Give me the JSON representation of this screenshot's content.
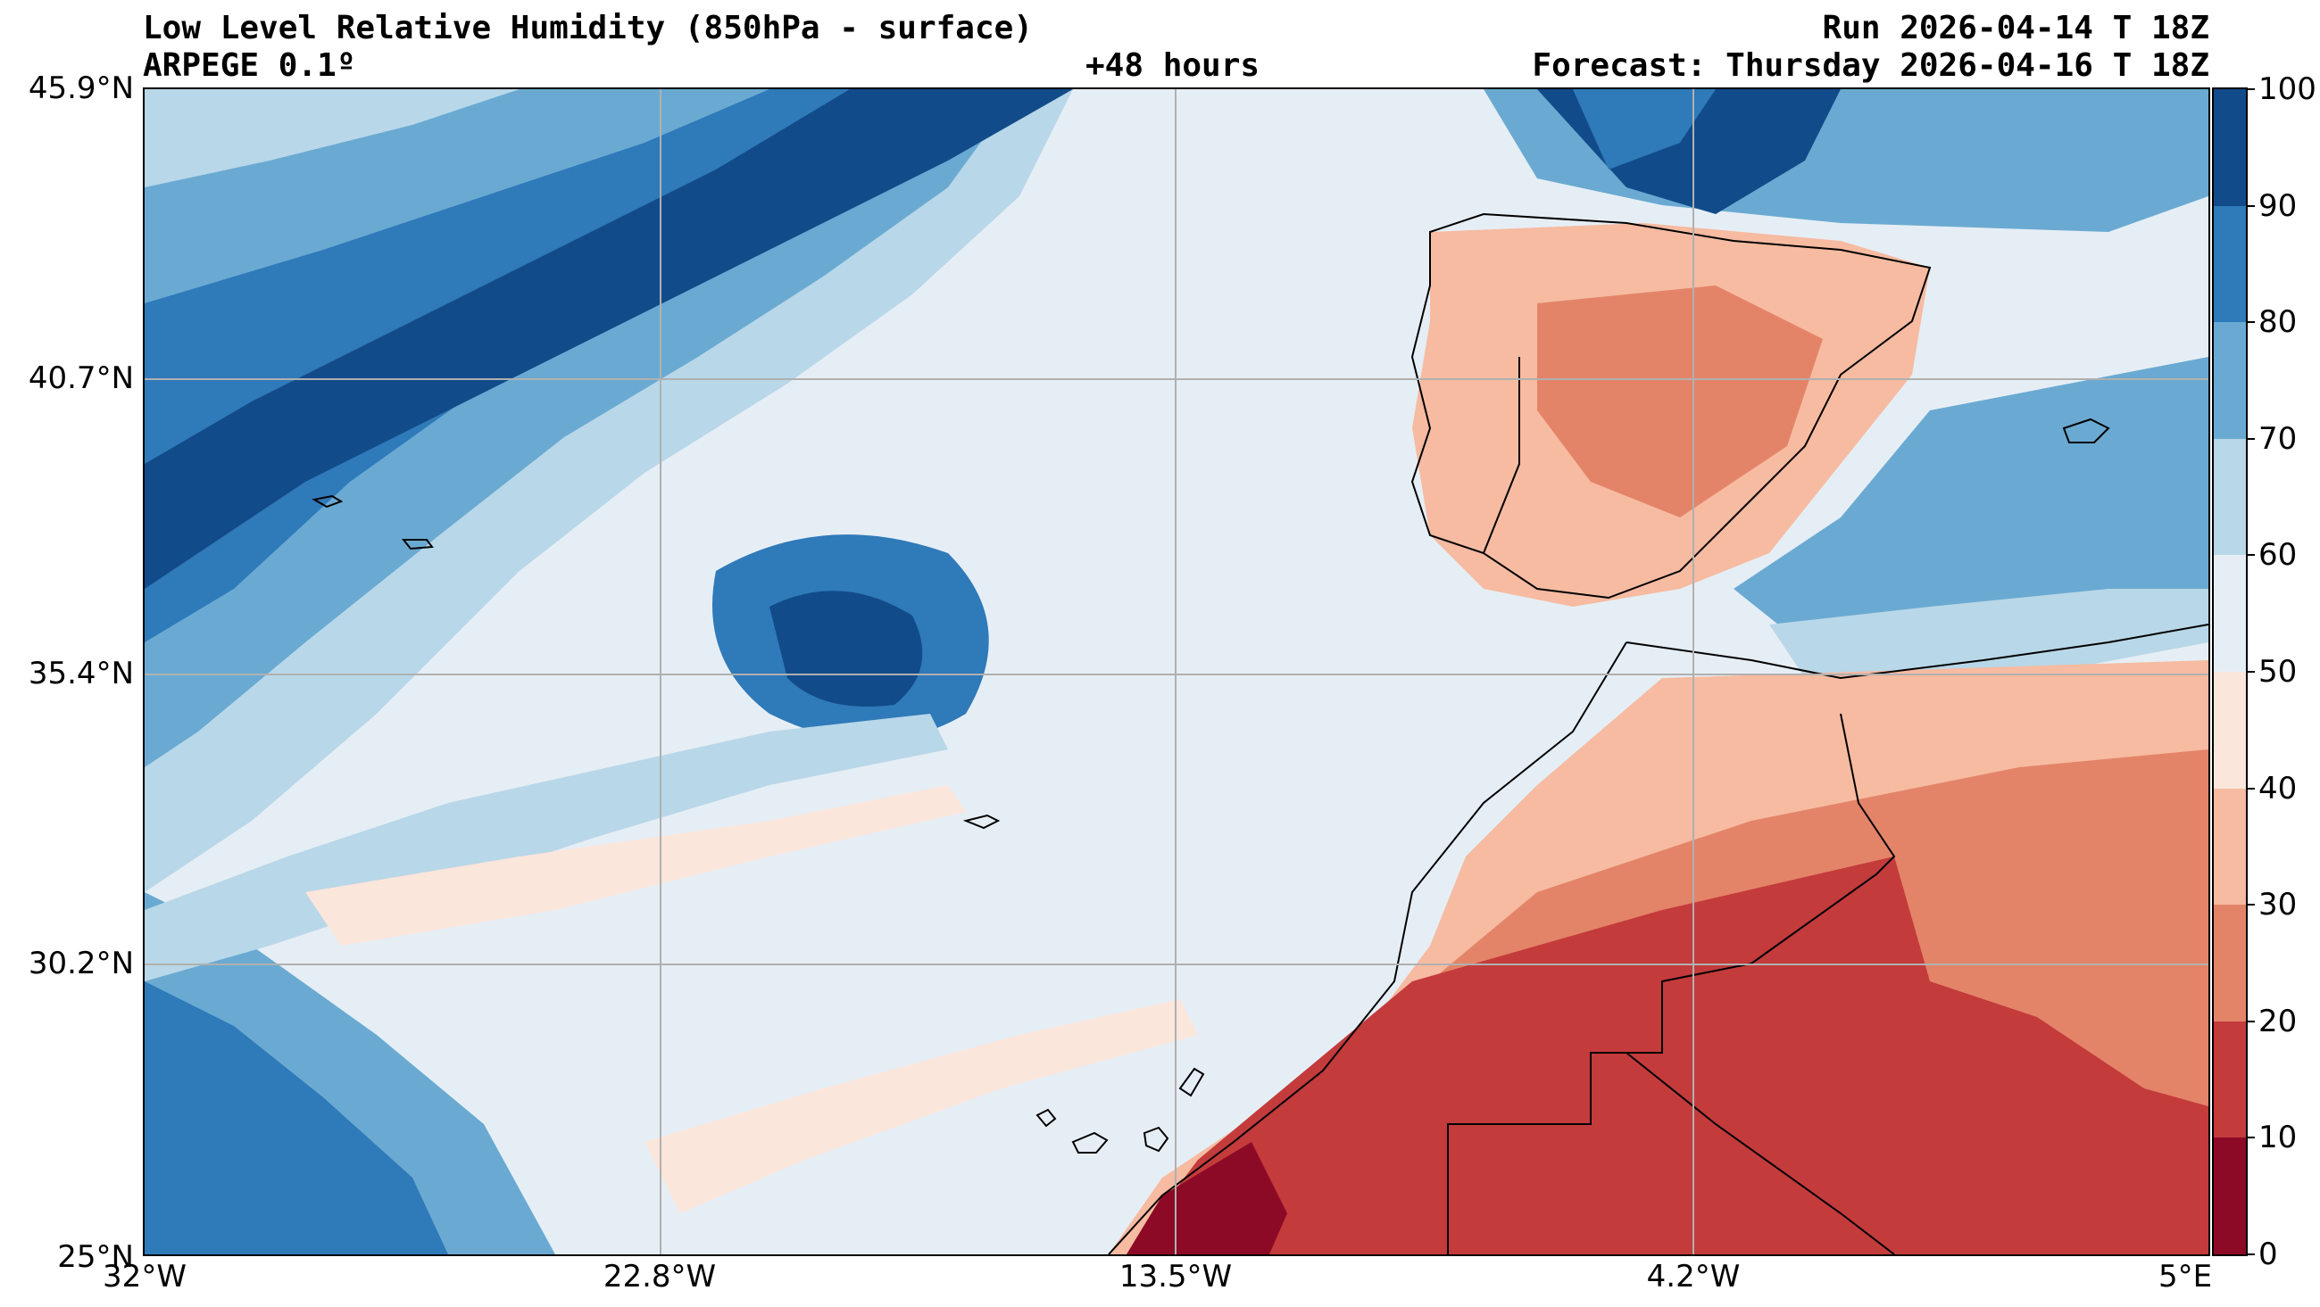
{
  "header": {
    "title": "Low Level Relative Humidity (850hPa - surface)",
    "model": "ARPEGE 0.1º",
    "lead_time": "+48 hours",
    "run": "Run 2026-04-14 T 18Z",
    "forecast": "Forecast: Thursday 2026-04-16 T 18Z"
  },
  "axes": {
    "latitude_labels": [
      "45.9°N",
      "40.7°N",
      "35.4°N",
      "30.2°N",
      "25°N"
    ],
    "longitude_labels": [
      "32°W",
      "22.8°W",
      "13.5°W",
      "4.2°W",
      "5°E"
    ],
    "lat_values": [
      45.9,
      40.7,
      35.4,
      30.2,
      25
    ],
    "lon_values": [
      -32,
      -22.8,
      -13.5,
      -4.2,
      5
    ],
    "lat_range": [
      25,
      45.9
    ],
    "lon_range": [
      -32,
      5
    ],
    "grid": true
  },
  "colorbar": {
    "ticks": [
      "0",
      "10",
      "20",
      "30",
      "40",
      "50",
      "60",
      "70",
      "80",
      "90",
      "100"
    ],
    "levels": [
      {
        "min": 0,
        "max": 10,
        "color": "#8c0a25"
      },
      {
        "min": 10,
        "max": 20,
        "color": "#c43b3c"
      },
      {
        "min": 20,
        "max": 30,
        "color": "#e38468"
      },
      {
        "min": 30,
        "max": 40,
        "color": "#f6bba1"
      },
      {
        "min": 40,
        "max": 50,
        "color": "#fbe6dc"
      },
      {
        "min": 50,
        "max": 60,
        "color": "#e6eef5"
      },
      {
        "min": 60,
        "max": 70,
        "color": "#b8d7e8"
      },
      {
        "min": 70,
        "max": 80,
        "color": "#6aaad2"
      },
      {
        "min": 80,
        "max": 90,
        "color": "#2f7ab9"
      },
      {
        "min": 90,
        "max": 100,
        "color": "#124b8a"
      }
    ]
  }
}
